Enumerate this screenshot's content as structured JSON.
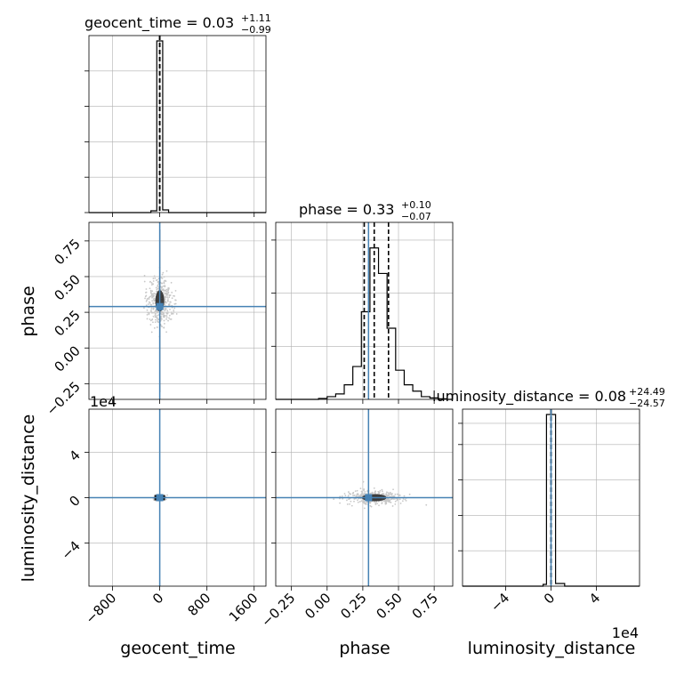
{
  "chart_data": {
    "type": "corner",
    "parameters": [
      "geocent_time",
      "phase",
      "luminosity_distance"
    ],
    "injection_values": {
      "geocent_time": 0,
      "phase": 0.29,
      "luminosity_distance": 0
    },
    "colors": {
      "hist": "#000000",
      "truth": "#4682b4",
      "grid": "#b0b0b0",
      "samples": "#c8c8c8"
    },
    "grid": true,
    "titles": [
      {
        "param": "geocent_time",
        "name": "geocent_time = 0.03",
        "plus": "+1.11",
        "minus": "−0.99"
      },
      {
        "param": "phase",
        "name": "phase = 0.33",
        "plus": "+0.10",
        "minus": "−0.07"
      },
      {
        "param": "luminosity_distance",
        "name": "luminosity_distance = 0.08",
        "plus": "+24.49",
        "minus": "−24.57"
      }
    ],
    "axis_labels": {
      "x": [
        "geocent_time",
        "phase",
        "luminosity_distance"
      ],
      "y": [
        "phase",
        "luminosity_distance"
      ]
    },
    "offset_labels": {
      "luminosity_distance_y": "1e4",
      "luminosity_distance_x": "1e4"
    },
    "ranges": {
      "geocent_time": [
        -1200,
        1800
      ],
      "phase": [
        -0.36,
        0.88
      ],
      "luminosity_distance_e4": [
        -7.8,
        7.8
      ]
    },
    "ticks": {
      "geocent_time": {
        "values": [
          -800,
          0,
          800,
          1600
        ],
        "labels": [
          "−800",
          "0",
          "800",
          "1600"
        ]
      },
      "phase": {
        "values": [
          -0.25,
          0.0,
          0.25,
          0.5,
          0.75
        ],
        "labels": [
          "−0.25",
          "0.00",
          "0.25",
          "0.50",
          "0.75"
        ]
      },
      "luminosity_distance": {
        "values": [
          -4,
          0,
          4
        ],
        "labels": [
          "−4",
          "0",
          "4"
        ]
      }
    },
    "histograms": {
      "geocent_time": {
        "bin_edges": [
          -1200,
          -1050,
          -900,
          -750,
          -600,
          -450,
          -300,
          -150,
          -50,
          50,
          150,
          300,
          450,
          600,
          750,
          900,
          1050,
          1200,
          1350,
          1500,
          1650,
          1800
        ],
        "heights": [
          0,
          0,
          0,
          0,
          0,
          0,
          0,
          0.01,
          0.97,
          0.015,
          0,
          0,
          0,
          0,
          0,
          0,
          0,
          0,
          0,
          0,
          0
        ]
      },
      "phase": {
        "bin_edges": [
          -0.36,
          -0.3,
          -0.24,
          -0.18,
          -0.12,
          -0.06,
          0.0,
          0.06,
          0.12,
          0.18,
          0.24,
          0.3,
          0.36,
          0.42,
          0.48,
          0.54,
          0.6,
          0.66,
          0.72,
          0.78,
          0.84,
          0.88
        ],
        "heights": [
          0,
          0,
          0,
          0,
          0,
          0.005,
          0.015,
          0.03,
          0.08,
          0.18,
          0.48,
          0.83,
          0.69,
          0.39,
          0.16,
          0.08,
          0.045,
          0.015,
          0.008,
          0.003,
          0
        ]
      },
      "luminosity_distance_e4": {
        "bin_edges": [
          -7.8,
          -7.0,
          -6.2,
          -5.4,
          -4.6,
          -3.8,
          -3.0,
          -2.2,
          -1.4,
          -0.7,
          -0.4,
          0.4,
          1.2,
          2.0,
          2.8,
          3.6,
          4.4,
          5.2,
          6.0,
          6.8,
          7.8
        ],
        "heights": [
          0,
          0,
          0,
          0,
          0,
          0,
          0,
          0,
          0,
          0.01,
          0.97,
          0.015,
          0,
          0,
          0,
          0,
          0,
          0,
          0,
          0
        ]
      }
    },
    "quantiles": {
      "geocent_time": [
        -0.96,
        0.03,
        1.14
      ],
      "phase": [
        0.26,
        0.33,
        0.43
      ],
      "luminosity_distance_e4": [
        -0.0025,
        0.0,
        0.0025
      ]
    }
  }
}
